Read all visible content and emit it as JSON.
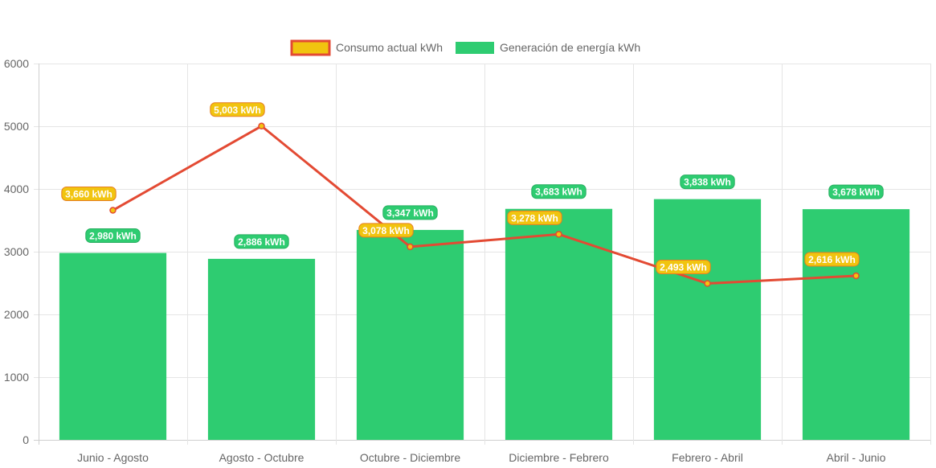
{
  "chart_data": {
    "type": "bar",
    "categories": [
      "Junio - Agosto",
      "Agosto - Octubre",
      "Octubre - Diciembre",
      "Diciembre - Febrero",
      "Febrero - Abril",
      "Abril - Junio"
    ],
    "series": [
      {
        "name": "Consumo actual kWh",
        "type": "line",
        "values": [
          3660,
          5003,
          3078,
          3278,
          2493,
          2616
        ],
        "labels": [
          "3,660 kWh",
          "5,003 kWh",
          "3,078 kWh",
          "3,278 kWh",
          "2,493 kWh",
          "2,616 kWh"
        ],
        "line_color": "#e34a33",
        "fill_color": "#f1c40f"
      },
      {
        "name": "Generación de energía kWh",
        "type": "bar",
        "values": [
          2980,
          2886,
          3347,
          3683,
          3838,
          3678
        ],
        "labels": [
          "2,980 kWh",
          "2,886 kWh",
          "3,347 kWh",
          "3,683 kWh",
          "3,838 kWh",
          "3,678 kWh"
        ],
        "color": "#2ecc71"
      }
    ],
    "ylim": [
      0,
      6000
    ],
    "yticks": [
      0,
      1000,
      2000,
      3000,
      4000,
      5000,
      6000
    ],
    "ytick_labels": [
      "0",
      "1000",
      "2000",
      "3000",
      "4000",
      "5000",
      "6000"
    ],
    "grid": true,
    "legend_position": "top-center",
    "title": "",
    "xlabel": "",
    "ylabel": ""
  }
}
